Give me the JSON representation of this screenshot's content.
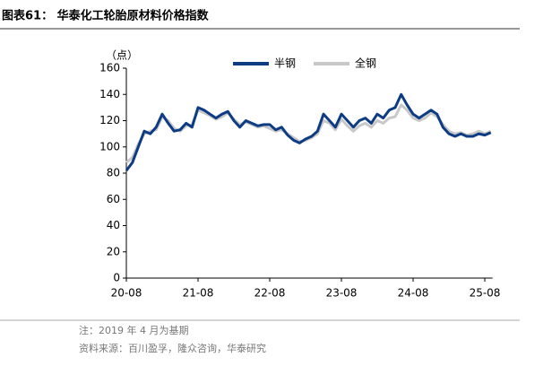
{
  "header": {
    "title": "图表61：  华泰化工轮胎原材料价格指数"
  },
  "chart_data": {
    "type": "line",
    "y_unit": "（点）",
    "categories": [
      "20-08",
      null,
      null,
      null,
      null,
      null,
      null,
      null,
      null,
      null,
      null,
      null,
      "21-08",
      null,
      null,
      null,
      null,
      null,
      null,
      null,
      null,
      null,
      null,
      null,
      "22-08",
      null,
      null,
      null,
      null,
      null,
      null,
      null,
      null,
      null,
      null,
      null,
      "23-08",
      null,
      null,
      null,
      null,
      null,
      null,
      null,
      null,
      null,
      null,
      null,
      "24-08",
      null,
      null,
      null,
      null,
      null,
      null,
      null,
      null,
      null,
      null,
      null,
      "25-08",
      null
    ],
    "series": [
      {
        "name": "半钢",
        "color": "#0d3c84",
        "values": [
          82,
          88,
          100,
          112,
          110,
          115,
          125,
          118,
          112,
          113,
          118,
          115,
          130,
          128,
          125,
          122,
          125,
          127,
          120,
          115,
          120,
          118,
          116,
          117,
          117,
          113,
          115,
          109,
          105,
          103,
          106,
          108,
          112,
          125,
          120,
          115,
          125,
          120,
          115,
          120,
          122,
          118,
          125,
          122,
          128,
          130,
          140,
          132,
          125,
          122,
          125,
          128,
          125,
          115,
          110,
          108,
          110,
          108,
          108,
          110,
          109,
          111
        ]
      },
      {
        "name": "全钢",
        "color": "#c8c8c8",
        "values": [
          88,
          92,
          102,
          110,
          112,
          113,
          123,
          120,
          114,
          112,
          116,
          117,
          128,
          126,
          124,
          121,
          123,
          126,
          121,
          117,
          119,
          117,
          115,
          116,
          114,
          112,
          113,
          110,
          107,
          104,
          105,
          107,
          110,
          120,
          118,
          113,
          121,
          116,
          112,
          116,
          118,
          115,
          120,
          118,
          122,
          123,
          132,
          128,
          122,
          120,
          122,
          126,
          123,
          117,
          112,
          110,
          111,
          109,
          110,
          112,
          110,
          112
        ]
      }
    ],
    "ylim": [
      0,
      160
    ],
    "yticks": [
      0,
      20,
      40,
      60,
      80,
      100,
      120,
      140,
      160
    ]
  },
  "footer": {
    "note": "注：2019 年 4 月为基期",
    "source": "资料来源：百川盈孚，隆众咨询，华泰研究"
  }
}
